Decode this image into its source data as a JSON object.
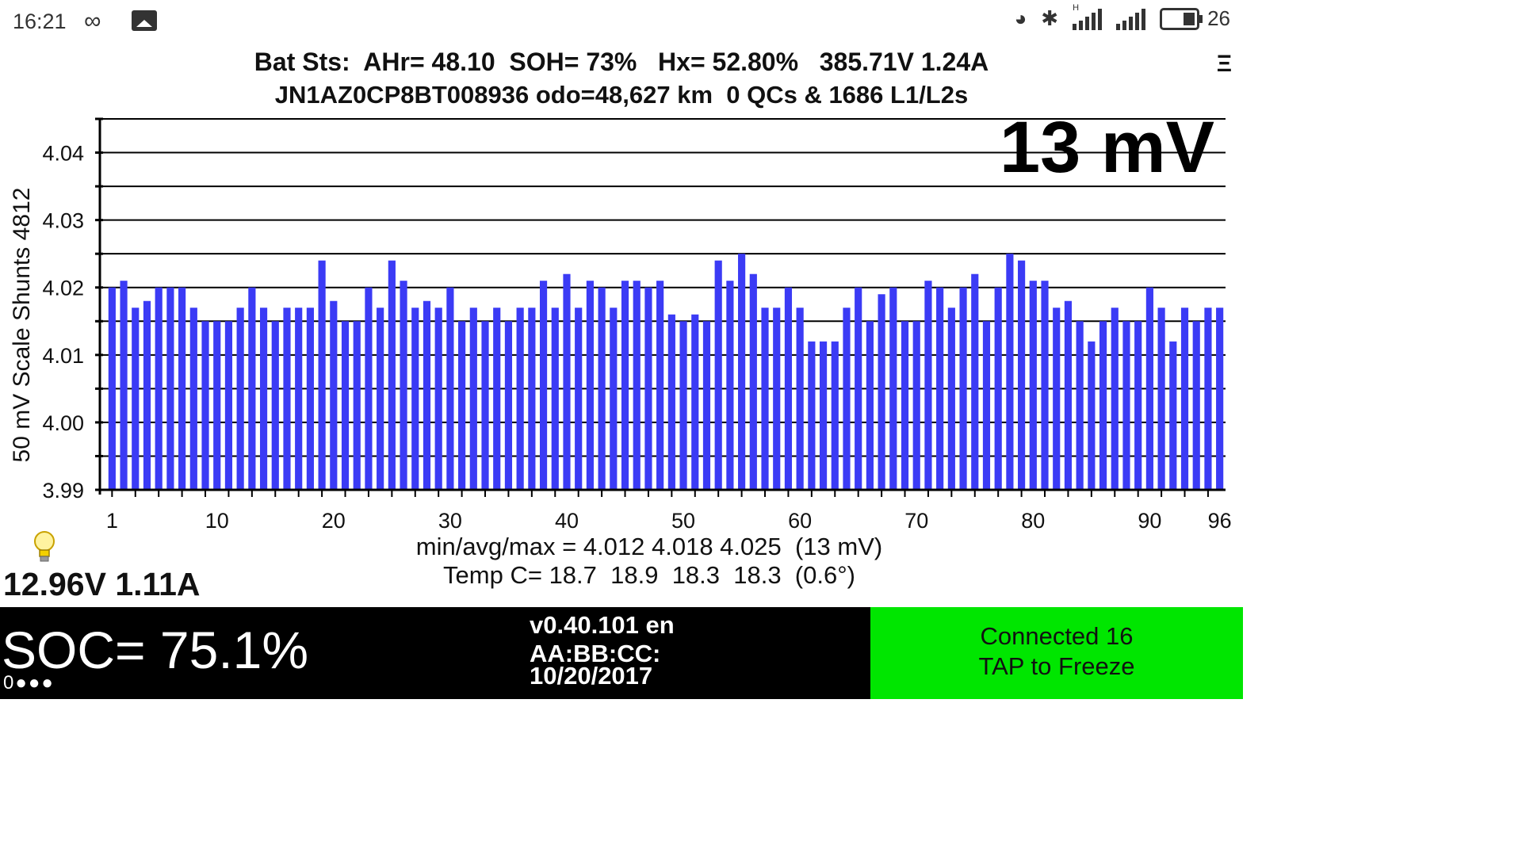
{
  "status_bar": {
    "time": "16:21",
    "icons": [
      "infinity-icon",
      "image-icon",
      "nfc-icon",
      "bluetooth-icon",
      "signal-icon",
      "signal-icon",
      "battery-icon"
    ],
    "battery_level": "26",
    "hplus_label": "H"
  },
  "header": {
    "line1": "Bat Sts:  AHr= 48.10  SOH= 73%   Hx= 52.80%   385.71V 1.24A",
    "line2": "JN1AZ0CP8BT008936 odo=48,627 km  0 QCs & 1686 L1/L2s",
    "menu_glyph": "Ξ"
  },
  "spread_display": "13 mV",
  "chart_data": {
    "type": "bar",
    "ylabel": "50 mV Scale  Shunts 4812",
    "ylim": [
      3.99,
      4.045
    ],
    "yticks": [
      "4.04",
      "4.03",
      "4.02",
      "4.01",
      "4.00",
      "3.99"
    ],
    "xticks": [
      "1",
      "10",
      "20",
      "30",
      "40",
      "50",
      "60",
      "70",
      "80",
      "90",
      "96"
    ],
    "color": "#3b3bf5",
    "values": [
      4.02,
      4.021,
      4.017,
      4.018,
      4.02,
      4.02,
      4.02,
      4.017,
      4.015,
      4.015,
      4.015,
      4.017,
      4.02,
      4.017,
      4.015,
      4.017,
      4.017,
      4.017,
      4.024,
      4.018,
      4.015,
      4.015,
      4.02,
      4.017,
      4.024,
      4.021,
      4.017,
      4.018,
      4.017,
      4.02,
      4.015,
      4.017,
      4.015,
      4.017,
      4.015,
      4.017,
      4.017,
      4.021,
      4.017,
      4.022,
      4.017,
      4.021,
      4.02,
      4.017,
      4.021,
      4.021,
      4.02,
      4.021,
      4.016,
      4.015,
      4.016,
      4.015,
      4.024,
      4.021,
      4.025,
      4.022,
      4.017,
      4.017,
      4.02,
      4.017,
      4.012,
      4.012,
      4.012,
      4.017,
      4.02,
      4.015,
      4.019,
      4.02,
      4.015,
      4.015,
      4.021,
      4.02,
      4.017,
      4.02,
      4.022,
      4.015,
      4.02,
      4.025,
      4.024,
      4.021,
      4.021,
      4.017,
      4.018,
      4.015,
      4.012,
      4.015,
      4.017,
      4.015,
      4.015,
      4.02,
      4.017,
      4.012,
      4.017,
      4.015,
      4.017,
      4.017
    ]
  },
  "stats": {
    "line1": "min/avg/max = 4.012 4.018 4.025  (13 mV)",
    "line2": "Temp C= 18.7  18.9  18.3  18.3  (0.6°)"
  },
  "live_reading": "12.96V 1.11A",
  "bottom": {
    "soc": "SOC= 75.1%",
    "dots": "0●●●",
    "version": "v0.40.101 en",
    "mac": "AA:BB:CC:",
    "date": "10/20/2017",
    "connected": "Connected 16",
    "tap": "TAP to Freeze",
    "green": "#00e600"
  }
}
